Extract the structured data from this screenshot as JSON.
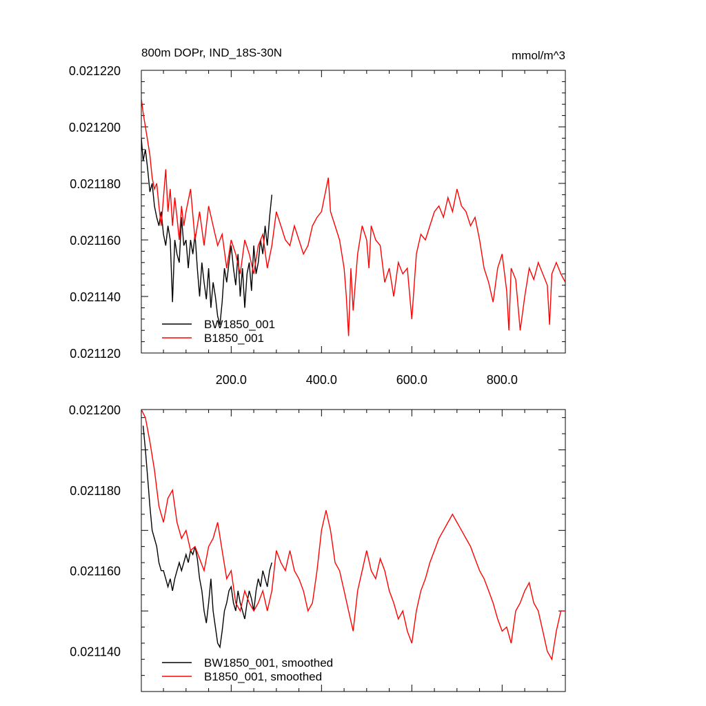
{
  "chart_data": [
    {
      "type": "line",
      "title": "800m DOPr, IND_18S-30N",
      "units": "mmol/m^3",
      "xlim": [
        1,
        940
      ],
      "ylim": [
        0.02112,
        0.02122
      ],
      "xticks": [
        200,
        400,
        600,
        800
      ],
      "xtick_labels": [
        "200.0",
        "400.0",
        "600.0",
        "800.0"
      ],
      "yticks": [
        0.02112,
        0.02114,
        0.02116,
        0.02118,
        0.0212,
        0.02122
      ],
      "ytick_labels": [
        "0.021120",
        "0.021140",
        "0.021160",
        "0.021180",
        "0.021200",
        "0.021220"
      ],
      "legend": "bottom-left",
      "grid": false,
      "series": [
        {
          "name": "BW1850_001",
          "color": "#000000",
          "x": [
            1,
            5,
            10,
            15,
            20,
            25,
            30,
            35,
            40,
            45,
            50,
            55,
            60,
            65,
            70,
            75,
            80,
            85,
            90,
            95,
            100,
            105,
            110,
            115,
            120,
            125,
            130,
            135,
            140,
            145,
            150,
            155,
            160,
            165,
            170,
            175,
            180,
            185,
            190,
            195,
            200,
            205,
            210,
            215,
            220,
            225,
            230,
            235,
            240,
            245,
            250,
            255,
            260,
            265,
            270,
            275,
            280,
            285,
            290
          ],
          "y": [
            0.021196,
            0.021188,
            0.021192,
            0.021185,
            0.021177,
            0.02118,
            0.021172,
            0.021168,
            0.021165,
            0.02117,
            0.021162,
            0.021158,
            0.021165,
            0.02116,
            0.021138,
            0.02116,
            0.021155,
            0.021152,
            0.021168,
            0.021158,
            0.02116,
            0.02115,
            0.02116,
            0.021155,
            0.021162,
            0.02115,
            0.02114,
            0.021152,
            0.021145,
            0.021139,
            0.02115,
            0.021136,
            0.021145,
            0.02114,
            0.021133,
            0.02113,
            0.021138,
            0.02115,
            0.021145,
            0.021152,
            0.021158,
            0.02115,
            0.021144,
            0.021155,
            0.02114,
            0.02115,
            0.021136,
            0.021148,
            0.021152,
            0.021142,
            0.021158,
            0.021148,
            0.021152,
            0.02116,
            0.021155,
            0.021165,
            0.021158,
            0.021168,
            0.021176
          ]
        },
        {
          "name": "B1850_001",
          "color": "#ff0000",
          "x": [
            1,
            5,
            10,
            15,
            20,
            25,
            30,
            35,
            40,
            45,
            50,
            55,
            60,
            65,
            70,
            75,
            80,
            85,
            90,
            95,
            100,
            110,
            120,
            130,
            140,
            150,
            160,
            170,
            180,
            190,
            200,
            210,
            220,
            230,
            240,
            250,
            260,
            270,
            280,
            290,
            300,
            310,
            320,
            330,
            340,
            350,
            360,
            370,
            380,
            390,
            400,
            410,
            415,
            420,
            430,
            440,
            450,
            455,
            460,
            465,
            470,
            480,
            490,
            500,
            505,
            510,
            520,
            530,
            540,
            550,
            560,
            570,
            580,
            590,
            600,
            610,
            620,
            630,
            640,
            650,
            660,
            670,
            680,
            690,
            700,
            710,
            720,
            730,
            740,
            750,
            760,
            770,
            780,
            790,
            800,
            810,
            815,
            820,
            830,
            840,
            850,
            860,
            870,
            880,
            890,
            900,
            905,
            910,
            920,
            930,
            940
          ],
          "y": [
            0.02121,
            0.021205,
            0.0212,
            0.021195,
            0.02119,
            0.021182,
            0.021178,
            0.02118,
            0.021172,
            0.021165,
            0.021175,
            0.021185,
            0.02117,
            0.021178,
            0.021165,
            0.021175,
            0.021168,
            0.02116,
            0.021172,
            0.021165,
            0.02117,
            0.021178,
            0.02116,
            0.02117,
            0.021158,
            0.021172,
            0.021165,
            0.021158,
            0.021162,
            0.02115,
            0.02116,
            0.021155,
            0.021148,
            0.02116,
            0.021155,
            0.021148,
            0.021158,
            0.021162,
            0.02115,
            0.021158,
            0.02117,
            0.021165,
            0.02116,
            0.021158,
            0.021165,
            0.02116,
            0.021155,
            0.021158,
            0.021165,
            0.021168,
            0.02117,
            0.021178,
            0.021182,
            0.02117,
            0.021165,
            0.02116,
            0.02115,
            0.02114,
            0.021126,
            0.02115,
            0.021135,
            0.021155,
            0.021165,
            0.02116,
            0.02115,
            0.021165,
            0.02116,
            0.021158,
            0.021145,
            0.02115,
            0.02114,
            0.021152,
            0.021148,
            0.02115,
            0.021132,
            0.021155,
            0.021162,
            0.02116,
            0.021165,
            0.02117,
            0.021172,
            0.021168,
            0.021175,
            0.02117,
            0.021178,
            0.021172,
            0.02117,
            0.021165,
            0.021168,
            0.02116,
            0.02115,
            0.021145,
            0.021138,
            0.02115,
            0.021155,
            0.021142,
            0.021128,
            0.02115,
            0.021146,
            0.021128,
            0.02114,
            0.02115,
            0.021146,
            0.021152,
            0.021148,
            0.021144,
            0.02113,
            0.021148,
            0.021152,
            0.021148,
            0.021145
          ]
        }
      ]
    },
    {
      "type": "line",
      "xlim": [
        1,
        940
      ],
      "ylim": [
        0.02113,
        0.0212
      ],
      "yticks": [
        0.02114,
        0.02116,
        0.02118,
        0.0212
      ],
      "ytick_labels": [
        "0.021140",
        "0.021160",
        "0.021180",
        "0.021200"
      ],
      "legend": "bottom-left",
      "grid": false,
      "series": [
        {
          "name": "BW1850_001, smoothed",
          "color": "#000000",
          "x": [
            5,
            10,
            15,
            20,
            25,
            30,
            35,
            40,
            45,
            50,
            55,
            60,
            65,
            70,
            75,
            80,
            85,
            90,
            95,
            100,
            105,
            110,
            115,
            120,
            125,
            130,
            135,
            140,
            145,
            150,
            155,
            160,
            165,
            170,
            175,
            180,
            185,
            190,
            195,
            200,
            205,
            210,
            215,
            220,
            225,
            230,
            235,
            240,
            245,
            250,
            255,
            260,
            265,
            270,
            275,
            280,
            285,
            290
          ],
          "y": [
            0.021196,
            0.02119,
            0.021183,
            0.021176,
            0.02117,
            0.021168,
            0.021166,
            0.021162,
            0.02116,
            0.02116,
            0.021158,
            0.021156,
            0.021158,
            0.021155,
            0.021158,
            0.02116,
            0.021162,
            0.02116,
            0.021162,
            0.021164,
            0.021162,
            0.021165,
            0.021164,
            0.021166,
            0.021163,
            0.021158,
            0.021155,
            0.02115,
            0.021147,
            0.021152,
            0.021158,
            0.02115,
            0.021146,
            0.021142,
            0.021141,
            0.021145,
            0.02115,
            0.021152,
            0.021155,
            0.021156,
            0.021152,
            0.02115,
            0.021155,
            0.021152,
            0.02115,
            0.021148,
            0.021152,
            0.021155,
            0.021153,
            0.02115,
            0.021155,
            0.021158,
            0.021156,
            0.02116,
            0.021158,
            0.021156,
            0.02116,
            0.021162
          ]
        },
        {
          "name": "B1850_001, smoothed",
          "color": "#ff0000",
          "x": [
            1,
            10,
            20,
            30,
            40,
            50,
            60,
            70,
            80,
            90,
            100,
            110,
            120,
            130,
            140,
            150,
            160,
            170,
            180,
            190,
            200,
            210,
            220,
            230,
            240,
            250,
            260,
            270,
            280,
            290,
            300,
            310,
            320,
            330,
            340,
            350,
            360,
            370,
            380,
            390,
            400,
            410,
            420,
            430,
            440,
            450,
            460,
            470,
            480,
            490,
            500,
            510,
            520,
            530,
            540,
            550,
            560,
            570,
            580,
            590,
            600,
            610,
            620,
            630,
            640,
            650,
            660,
            670,
            680,
            690,
            700,
            710,
            720,
            730,
            740,
            750,
            760,
            770,
            780,
            790,
            800,
            810,
            820,
            830,
            840,
            850,
            860,
            870,
            880,
            890,
            900,
            910,
            920,
            930,
            940
          ],
          "y": [
            0.0212,
            0.021198,
            0.021192,
            0.021185,
            0.021176,
            0.021172,
            0.021178,
            0.02118,
            0.021172,
            0.021168,
            0.02117,
            0.021165,
            0.021166,
            0.021163,
            0.02116,
            0.021166,
            0.021168,
            0.021172,
            0.021165,
            0.021158,
            0.02116,
            0.021152,
            0.02115,
            0.021155,
            0.021152,
            0.02115,
            0.021152,
            0.021155,
            0.02115,
            0.021155,
            0.021165,
            0.021162,
            0.02116,
            0.021165,
            0.02116,
            0.021158,
            0.021155,
            0.02115,
            0.021152,
            0.02116,
            0.02117,
            0.021175,
            0.02117,
            0.021162,
            0.02116,
            0.021155,
            0.02115,
            0.021145,
            0.021155,
            0.02116,
            0.021165,
            0.02116,
            0.021158,
            0.021163,
            0.02116,
            0.021155,
            0.021152,
            0.021148,
            0.02115,
            0.021145,
            0.021142,
            0.02115,
            0.021155,
            0.021158,
            0.021162,
            0.021165,
            0.021168,
            0.02117,
            0.021172,
            0.021174,
            0.021172,
            0.02117,
            0.021168,
            0.021166,
            0.021163,
            0.02116,
            0.021158,
            0.021155,
            0.021152,
            0.021148,
            0.021145,
            0.021146,
            0.021142,
            0.02115,
            0.021152,
            0.021155,
            0.021157,
            0.021152,
            0.02115,
            0.021145,
            0.02114,
            0.021138,
            0.021145,
            0.02115,
            0.02115
          ]
        }
      ]
    }
  ]
}
